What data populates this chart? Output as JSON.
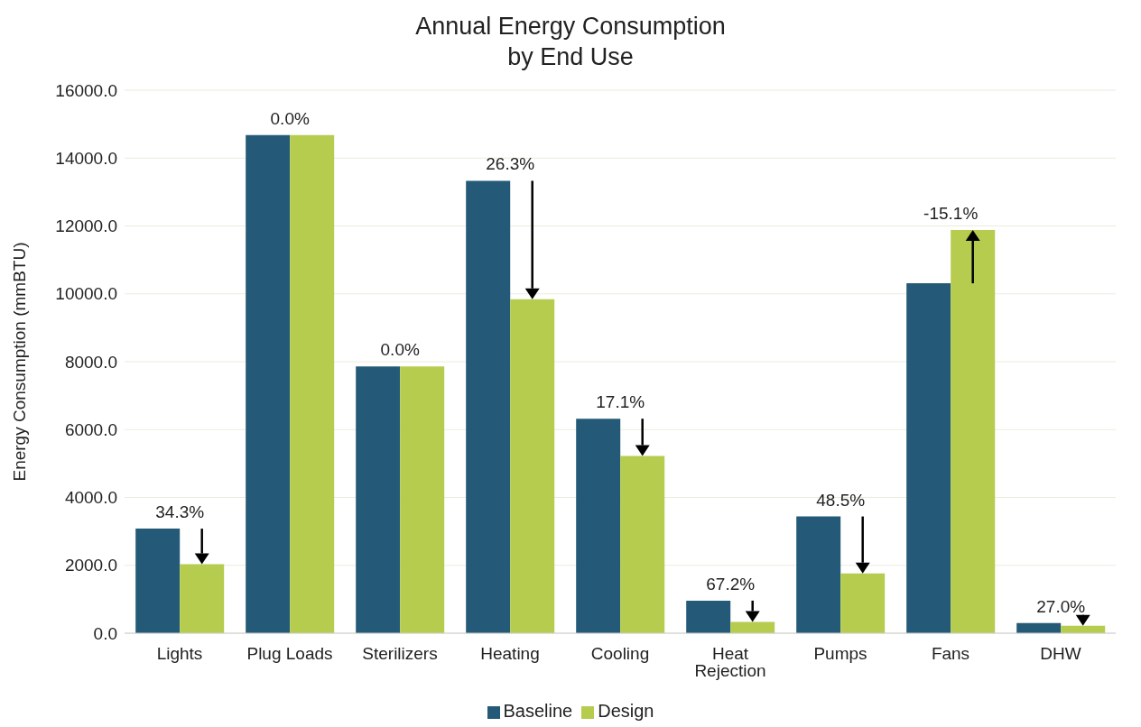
{
  "chart_data": {
    "type": "bar",
    "title": "Annual Energy Consumption by End Use",
    "ylabel": "Energy Consumption (mmBTU)",
    "categories": [
      "Lights",
      "Plug Loads",
      "Sterilizers",
      "Heating",
      "Cooling",
      "Heat Rejection",
      "Pumps",
      "Fans",
      "DHW"
    ],
    "series": [
      {
        "name": "Baseline",
        "color": "#245a78",
        "values": [
          3080,
          14680,
          7860,
          13330,
          6320,
          960,
          3440,
          10310,
          300
        ]
      },
      {
        "name": "Design",
        "color": "#b5cc4f",
        "values": [
          2030,
          14680,
          7860,
          9840,
          5220,
          330,
          1760,
          11880,
          220
        ]
      }
    ],
    "ylim": [
      0,
      16000
    ],
    "yticks": [
      {
        "value": 0,
        "label": "0.0"
      },
      {
        "value": 2000,
        "label": "2000.0"
      },
      {
        "value": 4000,
        "label": "4000.0"
      },
      {
        "value": 6000,
        "label": "6000.0"
      },
      {
        "value": 8000,
        "label": "8000.0"
      },
      {
        "value": 10000,
        "label": "10000.0"
      },
      {
        "value": 12000,
        "label": "12000.0"
      },
      {
        "value": 14000,
        "label": "14000.0"
      },
      {
        "value": 16000,
        "label": "16000.0"
      }
    ],
    "annotations": [
      "34.3%",
      "0.0%",
      "0.0%",
      "26.3%",
      "17.1%",
      "67.2%",
      "48.5%",
      "-15.1%",
      "27.0%"
    ],
    "grid": "y",
    "legend": "bottom"
  }
}
